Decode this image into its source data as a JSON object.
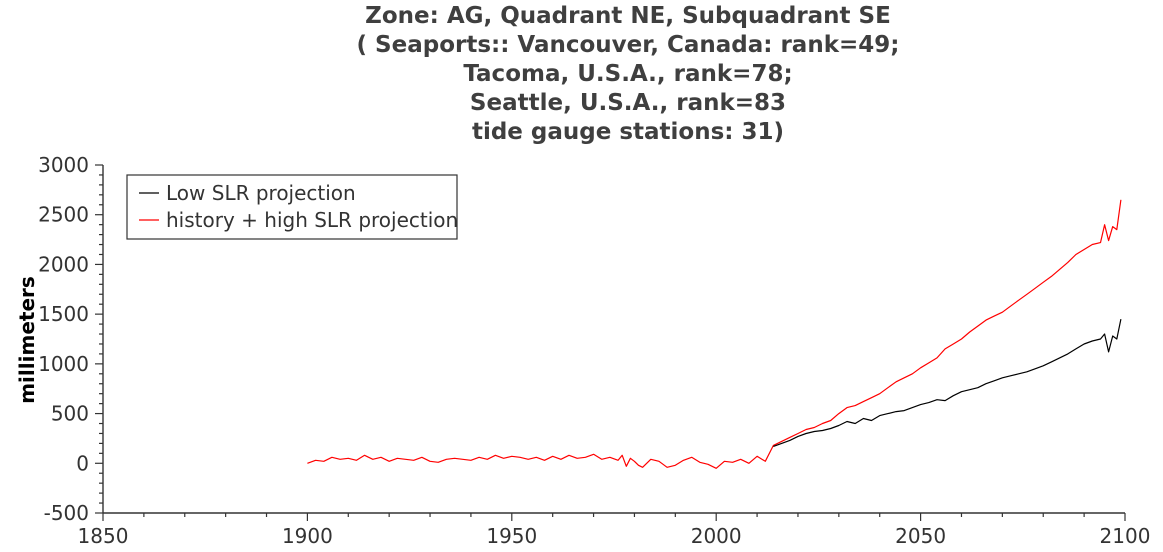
{
  "chart_data": {
    "type": "line",
    "title_lines": [
      "Zone: AG, Quadrant NE, Subquadrant SE",
      "( Seaports:: Vancouver, Canada: rank=49;",
      "Tacoma, U.S.A., rank=78;",
      "Seattle, U.S.A., rank=83",
      "tide gauge stations: 31)"
    ],
    "ylabel": "millimeters",
    "xlabel": "",
    "xlim": [
      1850,
      2100
    ],
    "ylim": [
      -500,
      3000
    ],
    "x_ticks": [
      1850,
      1900,
      1950,
      2000,
      2050,
      2100
    ],
    "y_ticks": [
      -500,
      0,
      500,
      1000,
      1500,
      2000,
      2500,
      3000
    ],
    "legend_position": "top-left",
    "colors": {
      "low": "#000000",
      "high": "#ff0000",
      "axis": "#333333"
    },
    "series": [
      {
        "name": "Low SLR projection",
        "color": "#000000",
        "x": [
          2014,
          2016,
          2018,
          2020,
          2022,
          2024,
          2026,
          2028,
          2030,
          2032,
          2034,
          2036,
          2038,
          2040,
          2042,
          2044,
          2046,
          2048,
          2050,
          2052,
          2054,
          2056,
          2058,
          2060,
          2062,
          2064,
          2066,
          2068,
          2070,
          2072,
          2074,
          2076,
          2078,
          2080,
          2082,
          2084,
          2086,
          2088,
          2090,
          2092,
          2094,
          2095,
          2096,
          2097,
          2098,
          2099
        ],
        "values": [
          170,
          200,
          230,
          270,
          300,
          320,
          330,
          350,
          380,
          420,
          400,
          450,
          430,
          480,
          500,
          520,
          530,
          560,
          590,
          610,
          640,
          630,
          680,
          720,
          740,
          760,
          800,
          830,
          860,
          880,
          900,
          920,
          950,
          980,
          1020,
          1060,
          1100,
          1150,
          1200,
          1230,
          1250,
          1300,
          1120,
          1280,
          1250,
          1450
        ]
      },
      {
        "name": "history + high SLR projection",
        "color": "#ff0000",
        "x": [
          1900,
          1902,
          1904,
          1906,
          1908,
          1910,
          1912,
          1914,
          1916,
          1918,
          1920,
          1922,
          1924,
          1926,
          1928,
          1930,
          1932,
          1934,
          1936,
          1938,
          1940,
          1942,
          1944,
          1946,
          1948,
          1950,
          1952,
          1954,
          1956,
          1958,
          1960,
          1962,
          1964,
          1966,
          1968,
          1970,
          1972,
          1974,
          1976,
          1977,
          1978,
          1979,
          1980,
          1981,
          1982,
          1984,
          1986,
          1988,
          1990,
          1992,
          1994,
          1996,
          1998,
          2000,
          2002,
          2004,
          2006,
          2008,
          2010,
          2012,
          2014,
          2016,
          2018,
          2020,
          2022,
          2024,
          2026,
          2028,
          2030,
          2032,
          2034,
          2036,
          2038,
          2040,
          2042,
          2044,
          2046,
          2048,
          2050,
          2052,
          2054,
          2056,
          2058,
          2060,
          2062,
          2064,
          2066,
          2068,
          2070,
          2072,
          2074,
          2076,
          2078,
          2080,
          2082,
          2084,
          2086,
          2088,
          2090,
          2092,
          2094,
          2095,
          2096,
          2097,
          2098,
          2099
        ],
        "values": [
          0,
          30,
          20,
          60,
          40,
          50,
          30,
          80,
          40,
          60,
          20,
          50,
          40,
          30,
          60,
          20,
          10,
          40,
          50,
          40,
          30,
          60,
          40,
          80,
          50,
          70,
          60,
          40,
          60,
          30,
          70,
          40,
          80,
          50,
          60,
          90,
          40,
          60,
          30,
          80,
          -30,
          50,
          20,
          -20,
          -40,
          40,
          20,
          -40,
          -20,
          30,
          60,
          10,
          -10,
          -50,
          20,
          10,
          40,
          0,
          70,
          20,
          180,
          220,
          260,
          300,
          340,
          360,
          400,
          430,
          500,
          560,
          580,
          620,
          660,
          700,
          760,
          820,
          860,
          900,
          960,
          1010,
          1060,
          1150,
          1200,
          1250,
          1320,
          1380,
          1440,
          1480,
          1520,
          1580,
          1640,
          1700,
          1760,
          1820,
          1880,
          1950,
          2020,
          2100,
          2150,
          2200,
          2220,
          2400,
          2240,
          2380,
          2350,
          2650
        ]
      }
    ]
  }
}
